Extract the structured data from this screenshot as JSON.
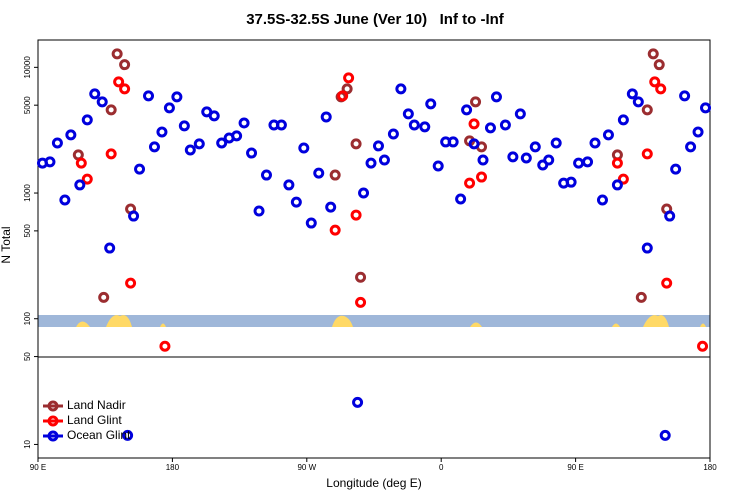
{
  "chart_data": {
    "type": "scatter",
    "title": "37.5S-32.5S June (Ver 10)   Inf to -Inf",
    "x_label": "Longitude (deg E)",
    "y_label": "N Total",
    "y_scale": "log",
    "legend": "bottom-left",
    "xlim": [
      90,
      540
    ],
    "xticks": [
      {
        "value": 90,
        "label": "90 E"
      },
      {
        "value": 180,
        "label": "180"
      },
      {
        "value": 270,
        "label": "90 W"
      },
      {
        "value": 360,
        "label": "0"
      },
      {
        "value": 450,
        "label": "90 E"
      },
      {
        "value": 540,
        "label": "180"
      }
    ],
    "ylim": [
      7.8,
      16500
    ],
    "yticks": [
      10,
      50,
      100,
      500,
      1000,
      5000,
      10000
    ],
    "series": [
      {
        "name": "Land Nadir",
        "color": "#9b2d30",
        "x": [
          117,
          134,
          139,
          143,
          148,
          152,
          289,
          293,
          297,
          303,
          306,
          379,
          383,
          387,
          478,
          494,
          498,
          502,
          506,
          511
        ],
        "values": [
          2010,
          148,
          4590,
          12800,
          10500,
          746,
          1390,
          5820,
          6740,
          2460,
          214,
          2600,
          5310,
          2330,
          2010,
          148,
          4590,
          12800,
          10500,
          746
        ]
      },
      {
        "name": "Land Glint",
        "color": "#ff0000",
        "x": [
          119,
          123,
          139,
          144,
          148,
          152,
          175,
          289,
          294,
          298,
          303,
          306,
          379,
          382,
          387,
          478,
          482,
          498,
          503,
          507,
          511,
          535
        ],
        "values": [
          1730,
          1290,
          2050,
          7660,
          6740,
          192,
          60.4,
          507,
          5930,
          8250,
          668,
          135,
          1200,
          3550,
          1340,
          1730,
          1290,
          2050,
          7660,
          6740,
          192,
          60.4
        ]
      },
      {
        "name": "Ocean Glint",
        "color": "#0000dd",
        "x": [
          93,
          98,
          103,
          108,
          112,
          118,
          123,
          128,
          133,
          138,
          150,
          154,
          158,
          164,
          168,
          173,
          178,
          183,
          188,
          192,
          198,
          203,
          208,
          213,
          218,
          223,
          228,
          233,
          238,
          243,
          248,
          253,
          258,
          263,
          268,
          273,
          278,
          283,
          286,
          304,
          308,
          313,
          318,
          322,
          328,
          333,
          338,
          342,
          349,
          353,
          358,
          363,
          368,
          373,
          377,
          382,
          388,
          393,
          397,
          403,
          408,
          413,
          417,
          423,
          428,
          432,
          437,
          442,
          447,
          452,
          458,
          463,
          468,
          472,
          478,
          482,
          488,
          492,
          498,
          510,
          513,
          517,
          523,
          527,
          532,
          537
        ],
        "values": [
          1730,
          1770,
          2500,
          880,
          2900,
          1160,
          3820,
          6150,
          5310,
          365,
          11.8,
          656,
          1550,
          5930,
          2330,
          3060,
          4760,
          5820,
          3420,
          2200,
          2460,
          4420,
          4110,
          2500,
          2740,
          2850,
          3610,
          2080,
          719,
          1390,
          3480,
          3480,
          1160,
          847,
          2280,
          577,
          1440,
          4030,
          773,
          21.6,
          1000,
          1730,
          2370,
          1830,
          2950,
          6740,
          4260,
          3480,
          3360,
          5120,
          1640,
          2550,
          2550,
          896,
          4590,
          2460,
          1830,
          3300,
          5820,
          3480,
          1940,
          4260,
          1900,
          2330,
          1670,
          1830,
          2500,
          1200,
          1220,
          1730,
          1770,
          2500,
          880,
          2900,
          1160,
          3820,
          6150,
          5310,
          365,
          11.8,
          656,
          1550,
          5930,
          2330,
          3060,
          4760
        ]
      }
    ]
  }
}
